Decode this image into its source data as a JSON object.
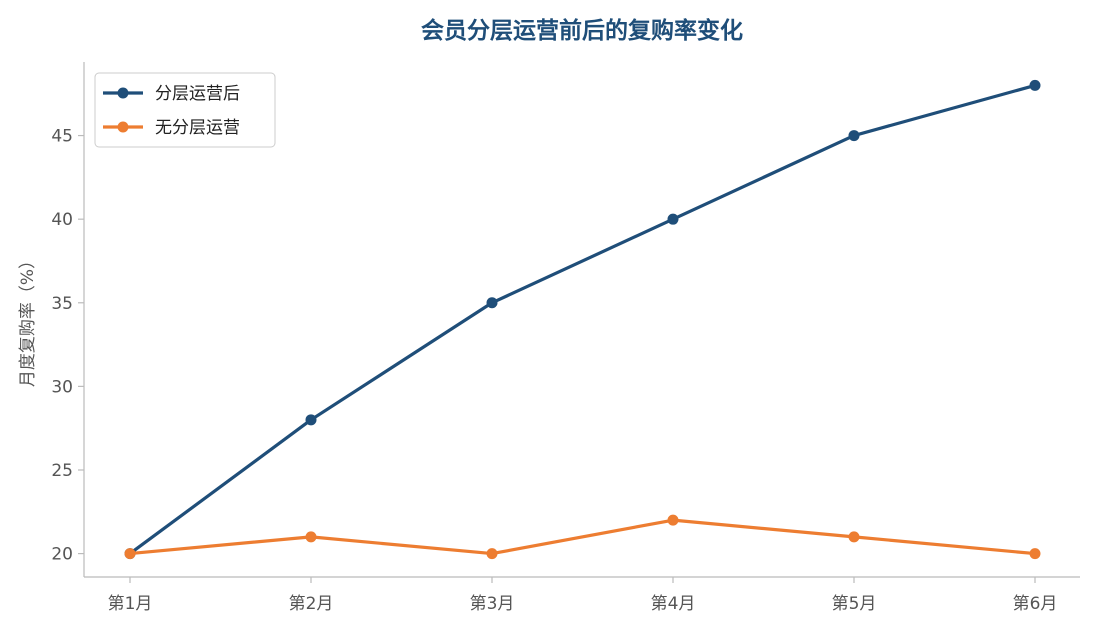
{
  "chart_data": {
    "type": "line",
    "title": "会员分层运营前后的复购率变化",
    "xlabel": "",
    "ylabel": "月度复购率（%）",
    "categories": [
      "第1月",
      "第2月",
      "第3月",
      "第4月",
      "第5月",
      "第6月"
    ],
    "ylim": [
      18.6,
      49.4
    ],
    "yticks": [
      20,
      25,
      30,
      35,
      40,
      45
    ],
    "grid": false,
    "legend_position": "top-left",
    "series": [
      {
        "name": "分层运营后",
        "color": "#1f4e79",
        "values": [
          20,
          28,
          35,
          40,
          45,
          48
        ]
      },
      {
        "name": "无分层运营",
        "color": "#ed7d31",
        "values": [
          20,
          21,
          20,
          22,
          21,
          20
        ]
      }
    ]
  }
}
